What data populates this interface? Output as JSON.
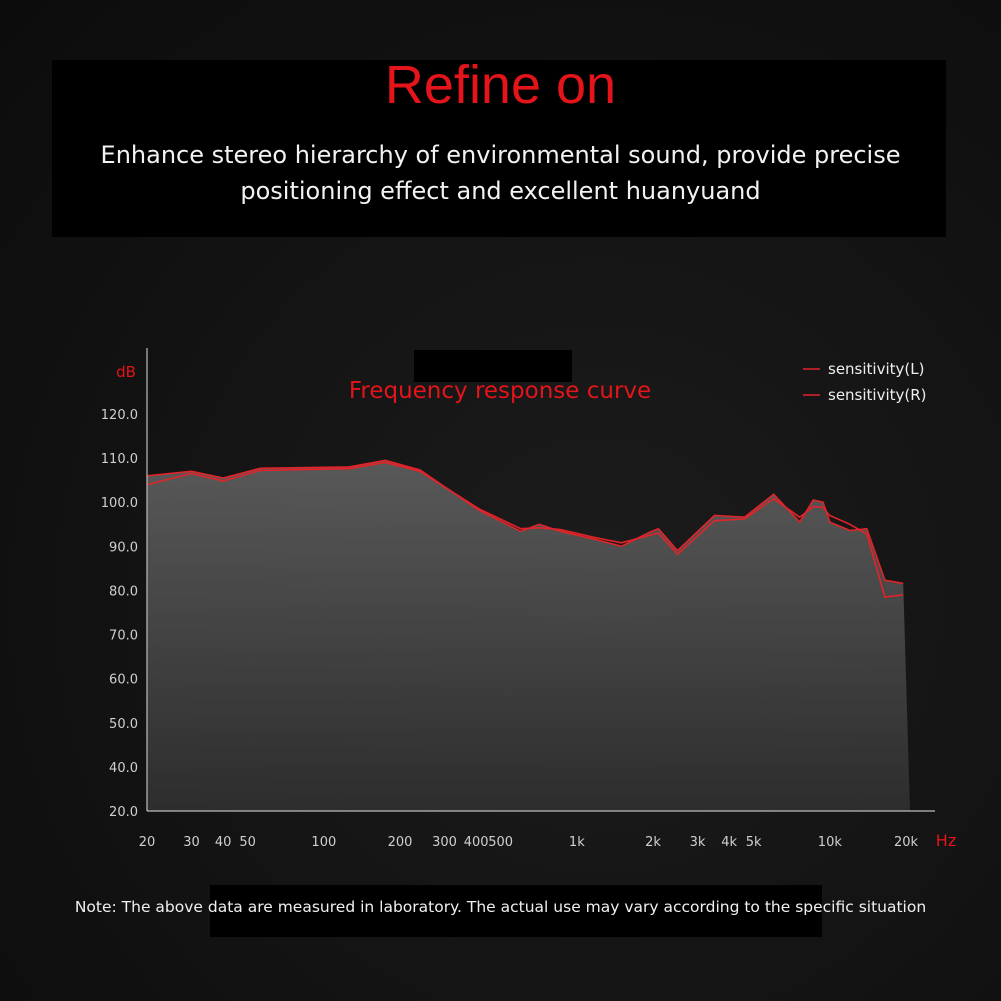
{
  "header": {
    "title": "Refine on",
    "subtitle_line1": "Enhance stereo hierarchy of environmental sound, provide precise",
    "subtitle_line2": "positioning effect and excellent huanyuand"
  },
  "note": "Note: The above data are measured in laboratory. The actual use may vary according to the specific situation",
  "colors": {
    "accent": "#e3141a",
    "curve": "#e0242a",
    "fill_top": "#5c5c5c",
    "fill_bottom": "#2e2e2e"
  },
  "chart_data": {
    "type": "area",
    "title": "Frequency response curve",
    "ylabel": "dB",
    "xlabel": "Hz",
    "x_scale": "log",
    "xlim": [
      20,
      20000
    ],
    "ylim": [
      30,
      120
    ],
    "y_ticks": [
      "20.0",
      "40.0",
      "50.0",
      "60.0",
      "70.0",
      "80.0",
      "90.0",
      "100.0",
      "110.0",
      "120.0"
    ],
    "x_ticks": [
      {
        "value": 20,
        "label": "20"
      },
      {
        "value": 30,
        "label": "30"
      },
      {
        "value": 40,
        "label": "40"
      },
      {
        "value": 50,
        "label": "50"
      },
      {
        "value": 100,
        "label": "100"
      },
      {
        "value": 200,
        "label": "200"
      },
      {
        "value": 300,
        "label": "300"
      },
      {
        "value": 400,
        "label": "400"
      },
      {
        "value": 500,
        "label": "500"
      },
      {
        "value": 1000,
        "label": "1k"
      },
      {
        "value": 2000,
        "label": "2k"
      },
      {
        "value": 3000,
        "label": "3k"
      },
      {
        "value": 4000,
        "label": "4k"
      },
      {
        "value": 5000,
        "label": "5k"
      },
      {
        "value": 10000,
        "label": "10k"
      },
      {
        "value": 20000,
        "label": "20k"
      }
    ],
    "grid": false,
    "legend_position": "top-right",
    "series": [
      {
        "name": "sensitivity(L)",
        "x": [
          20,
          30,
          40,
          56,
          126,
          175,
          240,
          410,
          600,
          710,
          860,
          1180,
          1500,
          1940,
          2100,
          2500,
          3500,
          4600,
          6000,
          7600,
          8600,
          9400,
          10000,
          12000,
          14000,
          16500,
          19500
        ],
        "y": [
          106,
          107,
          105.5,
          107.7,
          108,
          109.5,
          107.3,
          98.2,
          93.4,
          95,
          93.4,
          91.6,
          90,
          93.2,
          94,
          89,
          97,
          96.6,
          101.8,
          95.5,
          100.5,
          100,
          95.5,
          93.6,
          94,
          82.3,
          81.6
        ]
      },
      {
        "name": "sensitivity(R)",
        "x": [
          20,
          30,
          40,
          56,
          126,
          175,
          240,
          410,
          600,
          710,
          860,
          1180,
          1500,
          1940,
          2100,
          2500,
          3500,
          4600,
          6000,
          7600,
          8600,
          9400,
          10000,
          12000,
          14000,
          16500,
          19500
        ],
        "y": [
          104,
          106.5,
          104.8,
          107.2,
          107.6,
          109,
          107,
          98.5,
          94,
          94.2,
          93.8,
          92,
          90.8,
          92.5,
          93,
          88.2,
          95.8,
          96.2,
          100.8,
          96.6,
          99,
          98.8,
          97,
          95,
          92.8,
          78.5,
          79
        ]
      }
    ]
  }
}
